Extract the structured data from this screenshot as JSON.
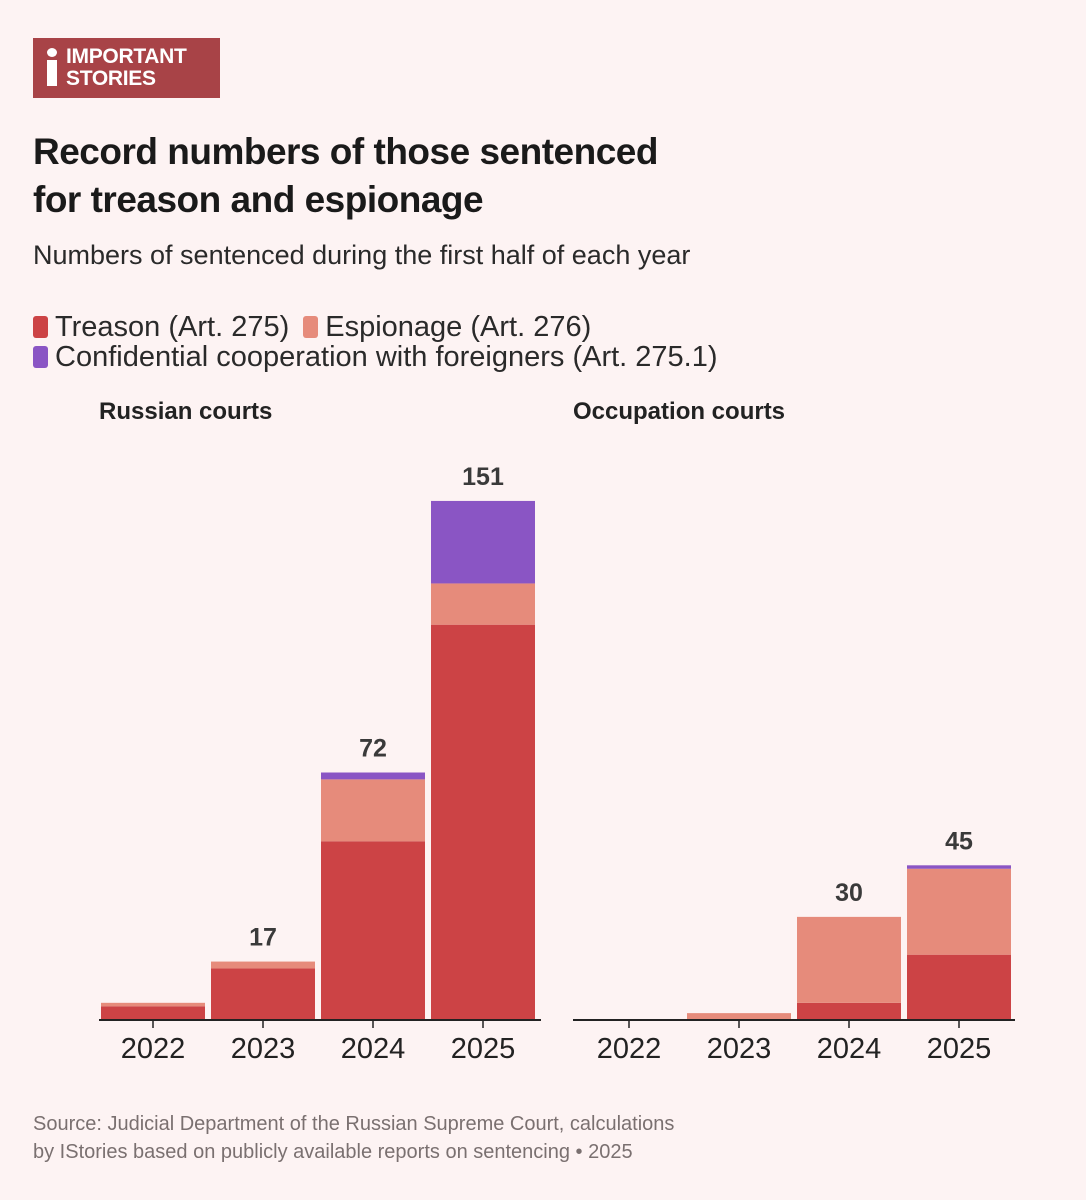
{
  "logo": {
    "line1": "IMPORTANT",
    "line2": "STORIES"
  },
  "title": {
    "line1": "Record numbers of those sentenced",
    "line2": "for treason and espionage"
  },
  "subtitle": "Numbers of sentenced during the first half of each year",
  "legend": [
    {
      "label": "Treason (Art. 275)",
      "color": "#cc4345"
    },
    {
      "label": "Espionage (Art. 276)",
      "color": "#e68b7b"
    },
    {
      "label": "Confidential cooperation with foreigners (Art. 275.1)",
      "color": "#8a55c4"
    }
  ],
  "source": {
    "line1": "Source: Judicial Department of the Russian Supreme Court, calculations",
    "line2": "by IStories based on publicly available reports on sentencing • 2025"
  },
  "chart_data": [
    {
      "type": "bar",
      "stacked": true,
      "title": "Russian courts",
      "categories": [
        "2022",
        "2023",
        "2024",
        "2025"
      ],
      "ylim": [
        0,
        160
      ],
      "series": [
        {
          "name": "Treason (Art. 275)",
          "color": "#cc4345",
          "values": [
            4,
            15,
            52,
            115
          ]
        },
        {
          "name": "Espionage (Art. 276)",
          "color": "#e68b7b",
          "values": [
            1,
            2,
            18,
            12
          ]
        },
        {
          "name": "Confidential cooperation with foreigners (Art. 275.1)",
          "color": "#8a55c4",
          "values": [
            0,
            0,
            2,
            24
          ]
        }
      ],
      "totals": [
        "",
        "17",
        "72",
        "151"
      ]
    },
    {
      "type": "bar",
      "stacked": true,
      "title": "Occupation courts",
      "categories": [
        "2022",
        "2023",
        "2024",
        "2025"
      ],
      "ylim": [
        0,
        160
      ],
      "series": [
        {
          "name": "Treason (Art. 275)",
          "color": "#cc4345",
          "values": [
            0,
            0,
            5,
            19
          ]
        },
        {
          "name": "Espionage (Art. 276)",
          "color": "#e68b7b",
          "values": [
            0,
            2,
            25,
            25
          ]
        },
        {
          "name": "Confidential cooperation with foreigners (Art. 275.1)",
          "color": "#8a55c4",
          "values": [
            0,
            0,
            0,
            1
          ]
        }
      ],
      "totals": [
        "",
        "",
        "30",
        "45"
      ]
    }
  ]
}
